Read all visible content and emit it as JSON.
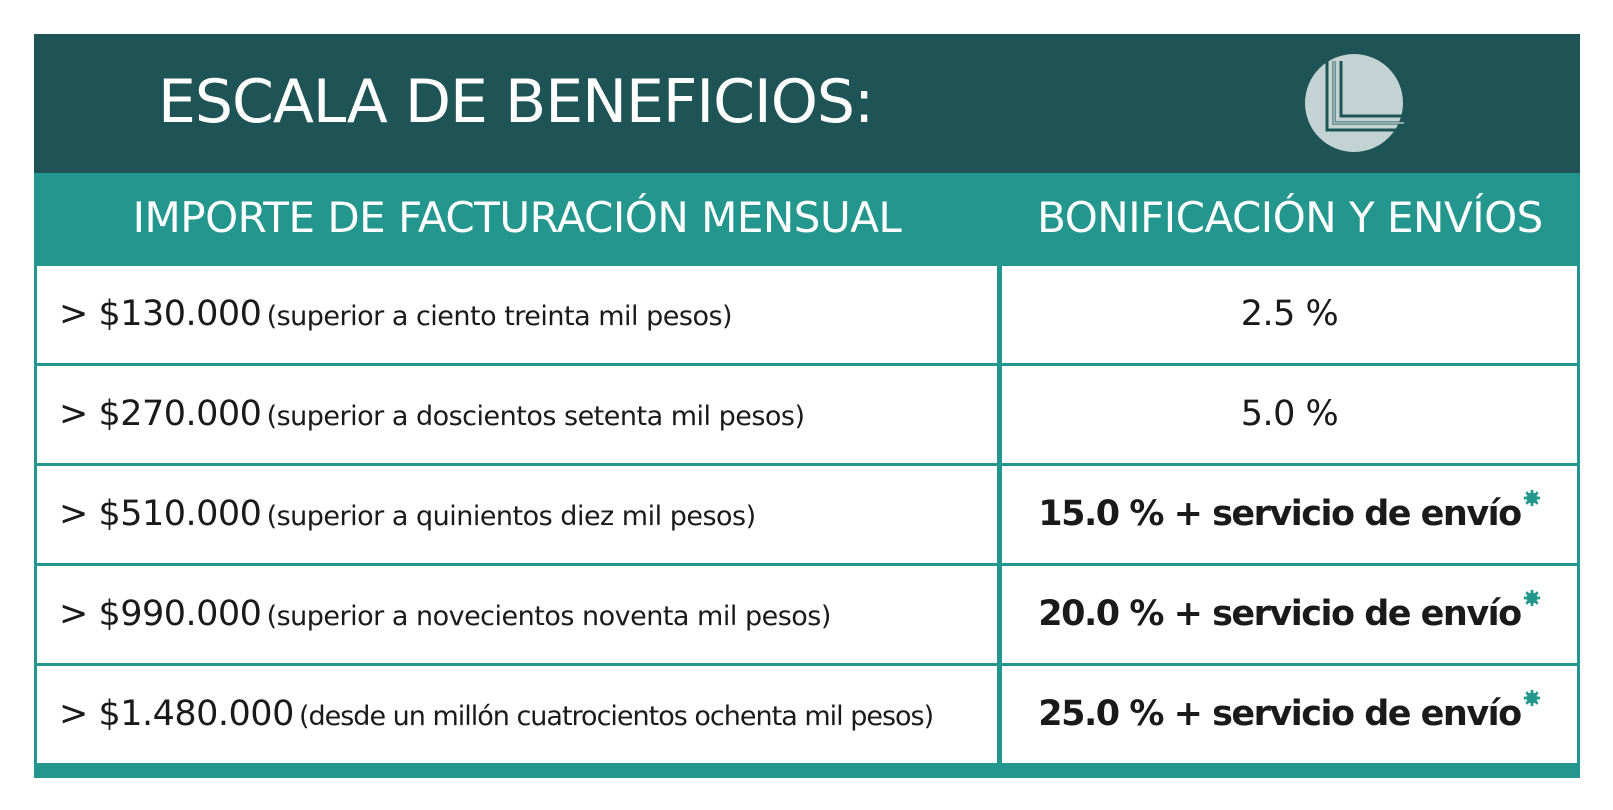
{
  "title": "ESCALA DE BENEFICIOS:",
  "logo": {
    "icon": "brand-logo-icon",
    "color": "#c3d3d3"
  },
  "headers": {
    "left": "IMPORTE DE FACTURACIÓN MENSUAL",
    "right": "BONIFICACIÓN Y ENVÍOS"
  },
  "rows": [
    {
      "amount": "> $130.000",
      "description": "(superior a ciento treinta mil pesos)",
      "benefit": "2.5 %"
    },
    {
      "amount": "> $270.000",
      "description": "(superior a doscientos setenta mil pesos)",
      "benefit": "5.0 %"
    },
    {
      "amount": "> $510.000",
      "description": "(superior a quinientos diez mil pesos)",
      "benefit": "15.0 % + servicio de envío"
    },
    {
      "amount": "> $990.000",
      "description": "(superior a novecientos noventa mil pesos)",
      "benefit": "20.0 % + servicio de envío"
    },
    {
      "amount": "> $1.480.000",
      "description": "(desde un millón cuatrocientos ochenta mil pesos)",
      "benefit": "25.0 % + servicio de envío"
    }
  ],
  "colors": {
    "title_bar": "#1f5457",
    "header": "#23968d",
    "border": "#23968d",
    "asterisk": "#23968d"
  }
}
